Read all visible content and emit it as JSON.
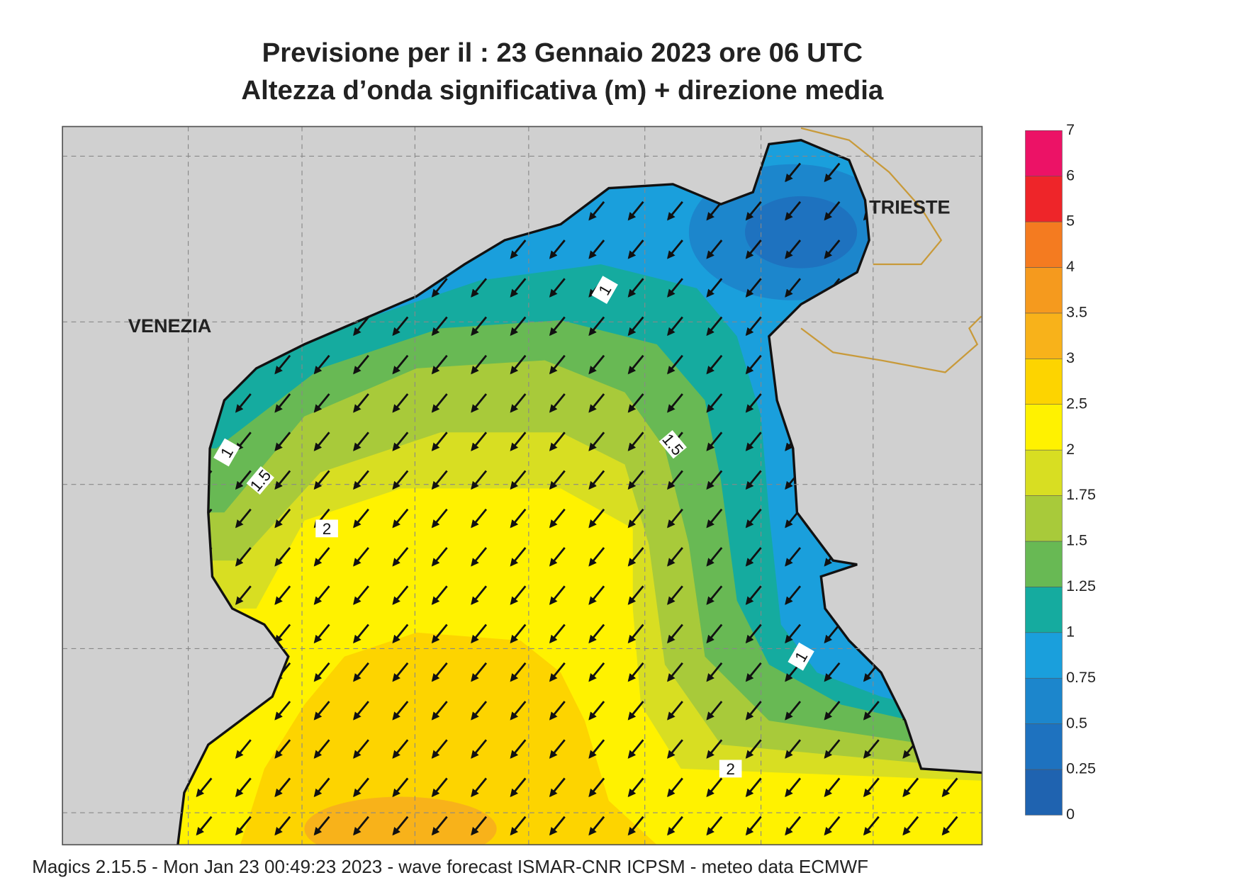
{
  "header": {
    "title": "Previsione per il  :  23  Gennaio  2023   ore 06 UTC",
    "subtitle": "Altezza d’onda significativa (m) + direzione media"
  },
  "places": [
    "VENEZIA",
    "TRIESTE"
  ],
  "contour_labels": [
    1,
    1,
    1.5,
    1.5,
    2,
    1,
    2
  ],
  "legend": {
    "levels": [
      0,
      0.25,
      0.5,
      0.75,
      1,
      1.25,
      1.5,
      1.75,
      2,
      2.5,
      3,
      3.5,
      4,
      5,
      6,
      7
    ],
    "colors": [
      "#1f63b0",
      "#1e72bf",
      "#1c86cc",
      "#1a9fdc",
      "#15ab9f",
      "#68b954",
      "#a8ca3a",
      "#d8de22",
      "#fff200",
      "#fdd400",
      "#f8b21a",
      "#f59a1e",
      "#f47b20",
      "#ee2529",
      "#ec1266"
    ]
  },
  "footer": "Magics 2.15.5 - Mon Jan 23 00:49:23 2023 - wave forecast  ISMAR-CNR  ICPSM - meteo data    ECMWF"
}
